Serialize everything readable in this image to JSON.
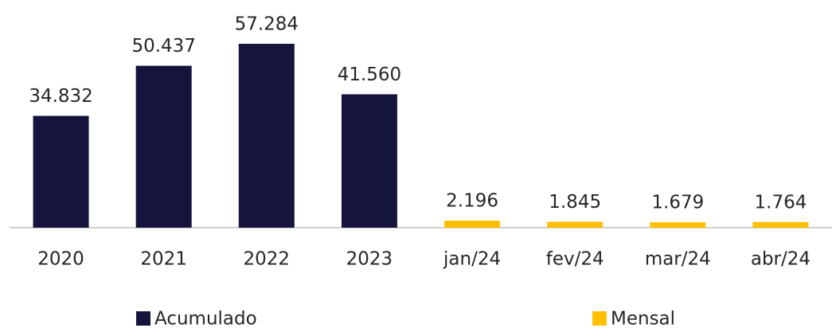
{
  "chart_data": {
    "type": "bar",
    "categories": [
      "2020",
      "2021",
      "2022",
      "2023",
      "jan/24",
      "fev/24",
      "mar/24",
      "abr/24"
    ],
    "series": [
      {
        "name": "Acumulado",
        "color": "#14143c",
        "values": [
          34832,
          50437,
          57284,
          41560,
          null,
          null,
          null,
          null
        ],
        "value_labels": [
          "34.832",
          "50.437",
          "57.284",
          "41.560",
          null,
          null,
          null,
          null
        ]
      },
      {
        "name": "Mensal",
        "color": "#ffc000",
        "values": [
          null,
          null,
          null,
          null,
          2196,
          1845,
          1679,
          1764
        ],
        "value_labels": [
          null,
          null,
          null,
          null,
          "2.196",
          "1.845",
          "1.679",
          "1.764"
        ]
      }
    ]
  }
}
